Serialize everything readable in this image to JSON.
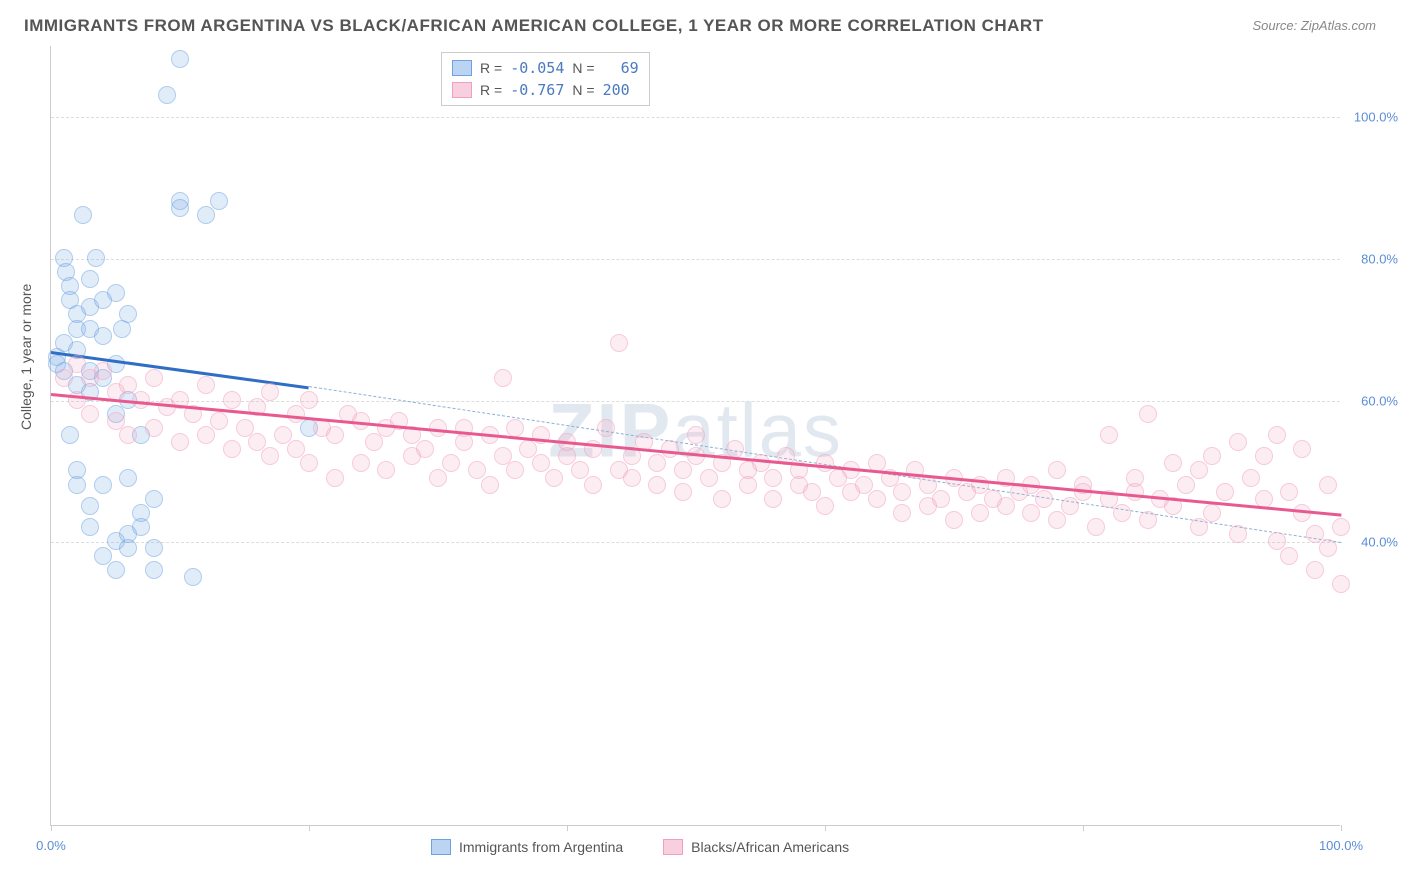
{
  "title": "IMMIGRANTS FROM ARGENTINA VS BLACK/AFRICAN AMERICAN COLLEGE, 1 YEAR OR MORE CORRELATION CHART",
  "source": "Source: ZipAtlas.com",
  "y_axis_label": "College, 1 year or more",
  "watermark": "ZIPatlas",
  "chart": {
    "type": "scatter",
    "xlim": [
      0,
      100
    ],
    "ylim": [
      0,
      110
    ],
    "x_ticks": [
      0,
      20,
      40,
      60,
      80,
      100
    ],
    "x_tick_labels": [
      "0.0%",
      "",
      "",
      "",
      "",
      "100.0%"
    ],
    "y_ticks": [
      40,
      60,
      80,
      100
    ],
    "y_tick_labels": [
      "40.0%",
      "60.0%",
      "80.0%",
      "100.0%"
    ],
    "background_color": "#ffffff",
    "grid_color": "#dddddd",
    "tick_label_color": "#5b8dd6",
    "series": [
      {
        "name": "Immigrants from Argentina",
        "color_fill": "rgba(120,170,230,0.4)",
        "color_stroke": "#6da3e0",
        "r_value": "-0.054",
        "n_value": "69",
        "regression": {
          "x1": 0,
          "y1": 67,
          "x2": 20,
          "y2": 62,
          "color": "#2f6ec4",
          "width": 3
        },
        "dashed_extension": {
          "x1": 20,
          "y1": 62,
          "x2": 100,
          "y2": 40
        },
        "points": [
          [
            0.5,
            66
          ],
          [
            0.5,
            65
          ],
          [
            1,
            68
          ],
          [
            1,
            64
          ],
          [
            1,
            80
          ],
          [
            1.2,
            78
          ],
          [
            1.5,
            76
          ],
          [
            1.5,
            74
          ],
          [
            1.5,
            55
          ],
          [
            2,
            72
          ],
          [
            2,
            70
          ],
          [
            2,
            67
          ],
          [
            2,
            62
          ],
          [
            2,
            50
          ],
          [
            2,
            48
          ],
          [
            2.5,
            86
          ],
          [
            3,
            77
          ],
          [
            3,
            73
          ],
          [
            3,
            70
          ],
          [
            3,
            64
          ],
          [
            3,
            61
          ],
          [
            3,
            45
          ],
          [
            3,
            42
          ],
          [
            3.5,
            80
          ],
          [
            4,
            74
          ],
          [
            4,
            69
          ],
          [
            4,
            63
          ],
          [
            4,
            48
          ],
          [
            4,
            38
          ],
          [
            5,
            75
          ],
          [
            5,
            65
          ],
          [
            5,
            58
          ],
          [
            5,
            40
          ],
          [
            5,
            36
          ],
          [
            5.5,
            70
          ],
          [
            6,
            72
          ],
          [
            6,
            60
          ],
          [
            6,
            49
          ],
          [
            6,
            41
          ],
          [
            6,
            39
          ],
          [
            7,
            55
          ],
          [
            7,
            44
          ],
          [
            7,
            42
          ],
          [
            8,
            46
          ],
          [
            8,
            39
          ],
          [
            8,
            36
          ],
          [
            9,
            103
          ],
          [
            10,
            108
          ],
          [
            10,
            88
          ],
          [
            10,
            87
          ],
          [
            11,
            35
          ],
          [
            12,
            86
          ],
          [
            13,
            88
          ],
          [
            20,
            56
          ]
        ]
      },
      {
        "name": "Blacks/African Americans",
        "color_fill": "rgba(240,160,190,0.35)",
        "color_stroke": "#f0a0be",
        "r_value": "-0.767",
        "n_value": "200",
        "regression": {
          "x1": 0,
          "y1": 61,
          "x2": 100,
          "y2": 44,
          "color": "#e85a8f",
          "width": 3
        },
        "points": [
          [
            1,
            63
          ],
          [
            2,
            65
          ],
          [
            2,
            60
          ],
          [
            3,
            63
          ],
          [
            3,
            58
          ],
          [
            4,
            64
          ],
          [
            5,
            61
          ],
          [
            5,
            57
          ],
          [
            6,
            62
          ],
          [
            6,
            55
          ],
          [
            7,
            60
          ],
          [
            8,
            63
          ],
          [
            8,
            56
          ],
          [
            9,
            59
          ],
          [
            10,
            60
          ],
          [
            10,
            54
          ],
          [
            11,
            58
          ],
          [
            12,
            62
          ],
          [
            12,
            55
          ],
          [
            13,
            57
          ],
          [
            14,
            60
          ],
          [
            14,
            53
          ],
          [
            15,
            56
          ],
          [
            16,
            59
          ],
          [
            16,
            54
          ],
          [
            17,
            61
          ],
          [
            17,
            52
          ],
          [
            18,
            55
          ],
          [
            19,
            58
          ],
          [
            19,
            53
          ],
          [
            20,
            60
          ],
          [
            20,
            51
          ],
          [
            21,
            56
          ],
          [
            22,
            55
          ],
          [
            22,
            49
          ],
          [
            23,
            58
          ],
          [
            24,
            57
          ],
          [
            24,
            51
          ],
          [
            25,
            54
          ],
          [
            26,
            56
          ],
          [
            26,
            50
          ],
          [
            27,
            57
          ],
          [
            28,
            52
          ],
          [
            28,
            55
          ],
          [
            29,
            53
          ],
          [
            30,
            56
          ],
          [
            30,
            49
          ],
          [
            31,
            51
          ],
          [
            32,
            54
          ],
          [
            32,
            56
          ],
          [
            33,
            50
          ],
          [
            34,
            55
          ],
          [
            34,
            48
          ],
          [
            35,
            52
          ],
          [
            35,
            63
          ],
          [
            36,
            56
          ],
          [
            36,
            50
          ],
          [
            37,
            53
          ],
          [
            38,
            51
          ],
          [
            38,
            55
          ],
          [
            39,
            49
          ],
          [
            40,
            54
          ],
          [
            40,
            52
          ],
          [
            41,
            50
          ],
          [
            42,
            53
          ],
          [
            42,
            48
          ],
          [
            43,
            56
          ],
          [
            44,
            68
          ],
          [
            44,
            50
          ],
          [
            45,
            52
          ],
          [
            45,
            49
          ],
          [
            46,
            54
          ],
          [
            47,
            51
          ],
          [
            47,
            48
          ],
          [
            48,
            53
          ],
          [
            49,
            50
          ],
          [
            49,
            47
          ],
          [
            50,
            52
          ],
          [
            50,
            55
          ],
          [
            51,
            49
          ],
          [
            52,
            51
          ],
          [
            52,
            46
          ],
          [
            53,
            53
          ],
          [
            54,
            50
          ],
          [
            54,
            48
          ],
          [
            55,
            51
          ],
          [
            56,
            49
          ],
          [
            56,
            46
          ],
          [
            57,
            52
          ],
          [
            58,
            48
          ],
          [
            58,
            50
          ],
          [
            59,
            47
          ],
          [
            60,
            51
          ],
          [
            60,
            45
          ],
          [
            61,
            49
          ],
          [
            62,
            50
          ],
          [
            62,
            47
          ],
          [
            63,
            48
          ],
          [
            64,
            46
          ],
          [
            64,
            51
          ],
          [
            65,
            49
          ],
          [
            66,
            47
          ],
          [
            66,
            44
          ],
          [
            67,
            50
          ],
          [
            68,
            48
          ],
          [
            68,
            45
          ],
          [
            69,
            46
          ],
          [
            70,
            49
          ],
          [
            70,
            43
          ],
          [
            71,
            47
          ],
          [
            72,
            48
          ],
          [
            72,
            44
          ],
          [
            73,
            46
          ],
          [
            74,
            45
          ],
          [
            74,
            49
          ],
          [
            75,
            47
          ],
          [
            76,
            44
          ],
          [
            76,
            48
          ],
          [
            77,
            46
          ],
          [
            78,
            43
          ],
          [
            78,
            50
          ],
          [
            79,
            45
          ],
          [
            80,
            47
          ],
          [
            80,
            48
          ],
          [
            81,
            42
          ],
          [
            82,
            46
          ],
          [
            82,
            55
          ],
          [
            83,
            44
          ],
          [
            84,
            47
          ],
          [
            84,
            49
          ],
          [
            85,
            58
          ],
          [
            85,
            43
          ],
          [
            86,
            46
          ],
          [
            87,
            45
          ],
          [
            87,
            51
          ],
          [
            88,
            48
          ],
          [
            89,
            42
          ],
          [
            89,
            50
          ],
          [
            90,
            52
          ],
          [
            90,
            44
          ],
          [
            91,
            47
          ],
          [
            92,
            54
          ],
          [
            92,
            41
          ],
          [
            93,
            49
          ],
          [
            94,
            46
          ],
          [
            94,
            52
          ],
          [
            95,
            40
          ],
          [
            95,
            55
          ],
          [
            96,
            47
          ],
          [
            96,
            38
          ],
          [
            97,
            44
          ],
          [
            97,
            53
          ],
          [
            98,
            36
          ],
          [
            98,
            41
          ],
          [
            99,
            39
          ],
          [
            99,
            48
          ],
          [
            100,
            34
          ],
          [
            100,
            42
          ]
        ]
      }
    ]
  },
  "legend": {
    "r_label": "R =",
    "n_label": "N ="
  },
  "bottom_legend": [
    "Immigrants from Argentina",
    "Blacks/African Americans"
  ]
}
